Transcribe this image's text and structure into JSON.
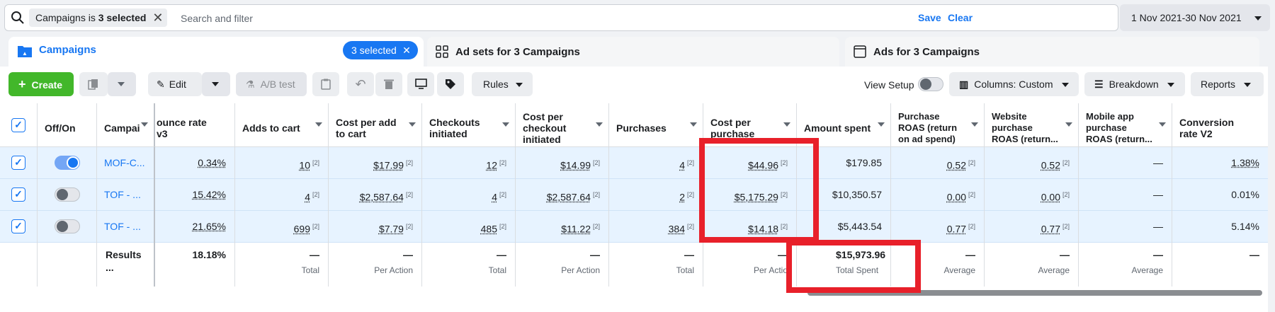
{
  "search": {
    "chip_prefix": "Campaigns is ",
    "chip_bold": "3 selected",
    "placeholder": "Search and filter",
    "save": "Save",
    "clear": "Clear",
    "date_range": "1 Nov 2021-30 Nov 2021"
  },
  "tabs": {
    "campaigns": "Campaigns",
    "selected": "3 selected",
    "ad_sets": "Ad sets for 3 Campaigns",
    "ads": "Ads for 3 Campaigns"
  },
  "toolbar": {
    "create": "Create",
    "edit": "Edit",
    "ab_test": "A/B test",
    "rules": "Rules",
    "view_setup": "View Setup",
    "columns": "Columns: Custom",
    "breakdown": "Breakdown",
    "reports": "Reports"
  },
  "table": {
    "headers": {
      "off_on": "Off/On",
      "campaign": "Campai",
      "bounce": "ounce rate v3",
      "adds_to_cart": "Adds to cart",
      "cost_per_add": "Cost per add to cart",
      "checkouts": "Checkouts initiated",
      "cost_per_checkout": "Cost per checkout initiated",
      "purchases": "Purchases",
      "cost_per_purchase": "Cost per purchase",
      "amount_spent": "Amount spent",
      "purchase_roas": "Purchase ROAS (return on ad spend)",
      "website_roas": "Website purchase ROAS (return...",
      "mobile_roas": "Mobile app purchase ROAS (return...",
      "conversion_rate": "Conversion rate V2"
    },
    "rows": [
      {
        "on": true,
        "name": "MOF-C...",
        "bounce": "0.34%",
        "adds": "10",
        "cost_add": "$17.99",
        "checkouts": "12",
        "cost_checkout": "$14.99",
        "purchases": "4",
        "cost_purchase": "$44.96",
        "spent": "$179.85",
        "roas": "0.52",
        "web_roas": "0.52",
        "mobile_roas": "—",
        "conv": "1.38%"
      },
      {
        "on": false,
        "name": "TOF - ...",
        "bounce": "15.42%",
        "adds": "4",
        "cost_add": "$2,587.64",
        "checkouts": "4",
        "cost_checkout": "$2,587.64",
        "purchases": "2",
        "cost_purchase": "$5,175.29",
        "spent": "$10,350.57",
        "roas": "0.00",
        "web_roas": "0.00",
        "mobile_roas": "—",
        "conv": "0.01%"
      },
      {
        "on": false,
        "name": "TOF - ...",
        "bounce": "21.65%",
        "adds": "699",
        "cost_add": "$7.79",
        "checkouts": "485",
        "cost_checkout": "$11.22",
        "purchases": "384",
        "cost_purchase": "$14.18",
        "spent": "$5,443.54",
        "roas": "0.77",
        "web_roas": "0.77",
        "mobile_roas": "—",
        "conv": "5.14%"
      }
    ],
    "footnote": "[2]",
    "summary": {
      "name": "Results ...",
      "bounce": "18.18%",
      "dash": "—",
      "spent": "$15,973.96",
      "total": "Total",
      "per_action": "Per Action",
      "per_actio": "Per Actio",
      "total_spent": "Total Spent",
      "average": "Average"
    }
  },
  "colors": {
    "accent": "#1877f2",
    "create": "#42b72a",
    "highlight": "#e8202a",
    "row_selected": "#e7f3ff"
  }
}
